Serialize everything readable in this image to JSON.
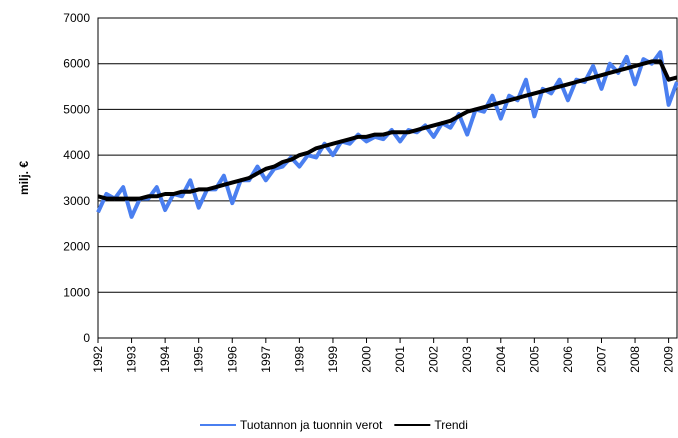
{
  "chart_data": {
    "type": "line",
    "y_label": "milj. €",
    "x": [
      1992,
      1992.25,
      1992.5,
      1992.75,
      1993,
      1993.25,
      1993.5,
      1993.75,
      1994,
      1994.25,
      1994.5,
      1994.75,
      1995,
      1995.25,
      1995.5,
      1995.75,
      1996,
      1996.25,
      1996.5,
      1996.75,
      1997,
      1997.25,
      1997.5,
      1997.75,
      1998,
      1998.25,
      1998.5,
      1998.75,
      1999,
      1999.25,
      1999.5,
      1999.75,
      2000,
      2000.25,
      2000.5,
      2000.75,
      2001,
      2001.25,
      2001.5,
      2001.75,
      2002,
      2002.25,
      2002.5,
      2002.75,
      2003,
      2003.25,
      2003.5,
      2003.75,
      2004,
      2004.25,
      2004.5,
      2004.75,
      2005,
      2005.25,
      2005.5,
      2005.75,
      2006,
      2006.25,
      2006.5,
      2006.75,
      2007,
      2007.25,
      2007.5,
      2007.75,
      2008,
      2008.25,
      2008.5,
      2008.75,
      2009,
      2009.25
    ],
    "series": [
      {
        "name": "Tuotannon ja tuonnin verot",
        "color": "#4a7ff0",
        "width": 4,
        "values": [
          2750,
          3150,
          3050,
          3300,
          2650,
          3050,
          3050,
          3300,
          2800,
          3150,
          3100,
          3450,
          2850,
          3250,
          3250,
          3550,
          2950,
          3450,
          3450,
          3750,
          3450,
          3700,
          3750,
          3950,
          3750,
          4000,
          3950,
          4250,
          4000,
          4300,
          4250,
          4450,
          4300,
          4400,
          4350,
          4550,
          4300,
          4550,
          4500,
          4650,
          4400,
          4700,
          4600,
          4900,
          4450,
          5000,
          4950,
          5300,
          4800,
          5300,
          5200,
          5650,
          4850,
          5450,
          5350,
          5650,
          5200,
          5650,
          5600,
          5950,
          5450,
          6000,
          5800,
          6150,
          5550,
          6100,
          6000,
          6250,
          5100,
          5600
        ]
      },
      {
        "name": "Trendi",
        "color": "#000000",
        "width": 4,
        "values": [
          3100,
          3050,
          3050,
          3050,
          3050,
          3050,
          3100,
          3100,
          3150,
          3150,
          3200,
          3200,
          3250,
          3250,
          3300,
          3350,
          3400,
          3450,
          3500,
          3600,
          3700,
          3750,
          3850,
          3900,
          4000,
          4050,
          4150,
          4200,
          4250,
          4300,
          4350,
          4400,
          4400,
          4450,
          4450,
          4500,
          4500,
          4500,
          4550,
          4600,
          4650,
          4700,
          4750,
          4850,
          4950,
          5000,
          5050,
          5100,
          5150,
          5200,
          5250,
          5300,
          5350,
          5400,
          5450,
          5500,
          5550,
          5600,
          5650,
          5700,
          5750,
          5800,
          5850,
          5900,
          5950,
          6000,
          6050,
          6050,
          5650,
          5700
        ]
      }
    ],
    "xlim": [
      1992,
      2009.25
    ],
    "xticks": [
      1992,
      1993,
      1994,
      1995,
      1996,
      1997,
      1998,
      1999,
      2000,
      2001,
      2002,
      2003,
      2004,
      2005,
      2006,
      2007,
      2008,
      2009
    ],
    "ylim": [
      0,
      7000
    ],
    "yticks": [
      0,
      1000,
      2000,
      3000,
      4000,
      5000,
      6000,
      7000
    ],
    "grid": true
  }
}
